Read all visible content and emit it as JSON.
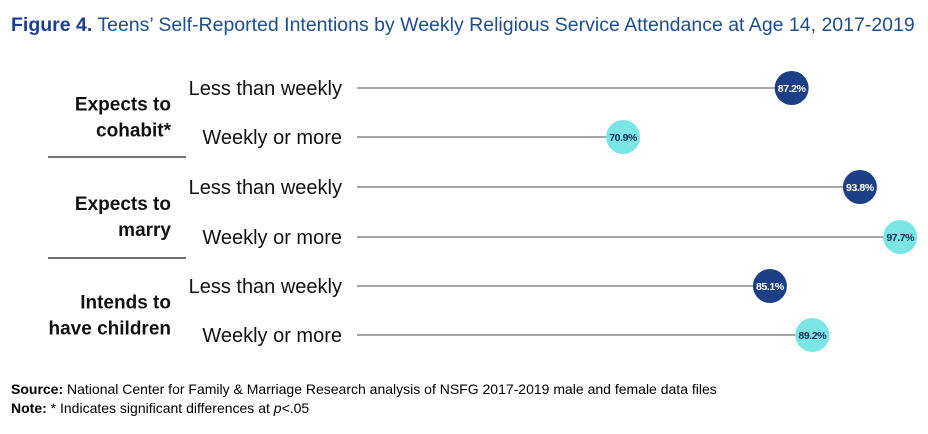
{
  "title": {
    "figure_label": "Figure 4.",
    "text": "Teens’ Self-Reported Intentions by Weekly Religious Service Attendance at Age 14, 2017-2019"
  },
  "colors": {
    "title": "#1f4e8c",
    "less_than_weekly": "#1d3f87",
    "weekly_or_more": "#7ae6e6",
    "line": "#4d4d4d"
  },
  "chart_data": {
    "type": "dot",
    "groups": [
      {
        "label_lines": [
          "Expects to",
          "cohabit*"
        ],
        "rows": [
          {
            "category": "Less than weekly",
            "value": 87.2,
            "label": "87.2%"
          },
          {
            "category": "Weekly or more",
            "value": 70.9,
            "label": "70.9%"
          }
        ]
      },
      {
        "label_lines": [
          "Expects to",
          "marry"
        ],
        "rows": [
          {
            "category": "Less than weekly",
            "value": 93.8,
            "label": "93.8%"
          },
          {
            "category": "Weekly or more",
            "value": 97.7,
            "label": "97.7%"
          }
        ]
      },
      {
        "label_lines": [
          "Intends to",
          "have children"
        ],
        "rows": [
          {
            "category": "Less than weekly",
            "value": 85.1,
            "label": "85.1%"
          },
          {
            "category": "Weekly or more",
            "value": 89.2,
            "label": "89.2%"
          }
        ]
      }
    ]
  },
  "footer": {
    "source_label": "Source:",
    "source_text": "National Center for Family & Marriage Research analysis of NSFG 2017-2019 male and female data files",
    "note_label": "Note:",
    "note_text": "* Indicates significant differences at ",
    "note_p": "p",
    "note_threshold": "<.05"
  }
}
